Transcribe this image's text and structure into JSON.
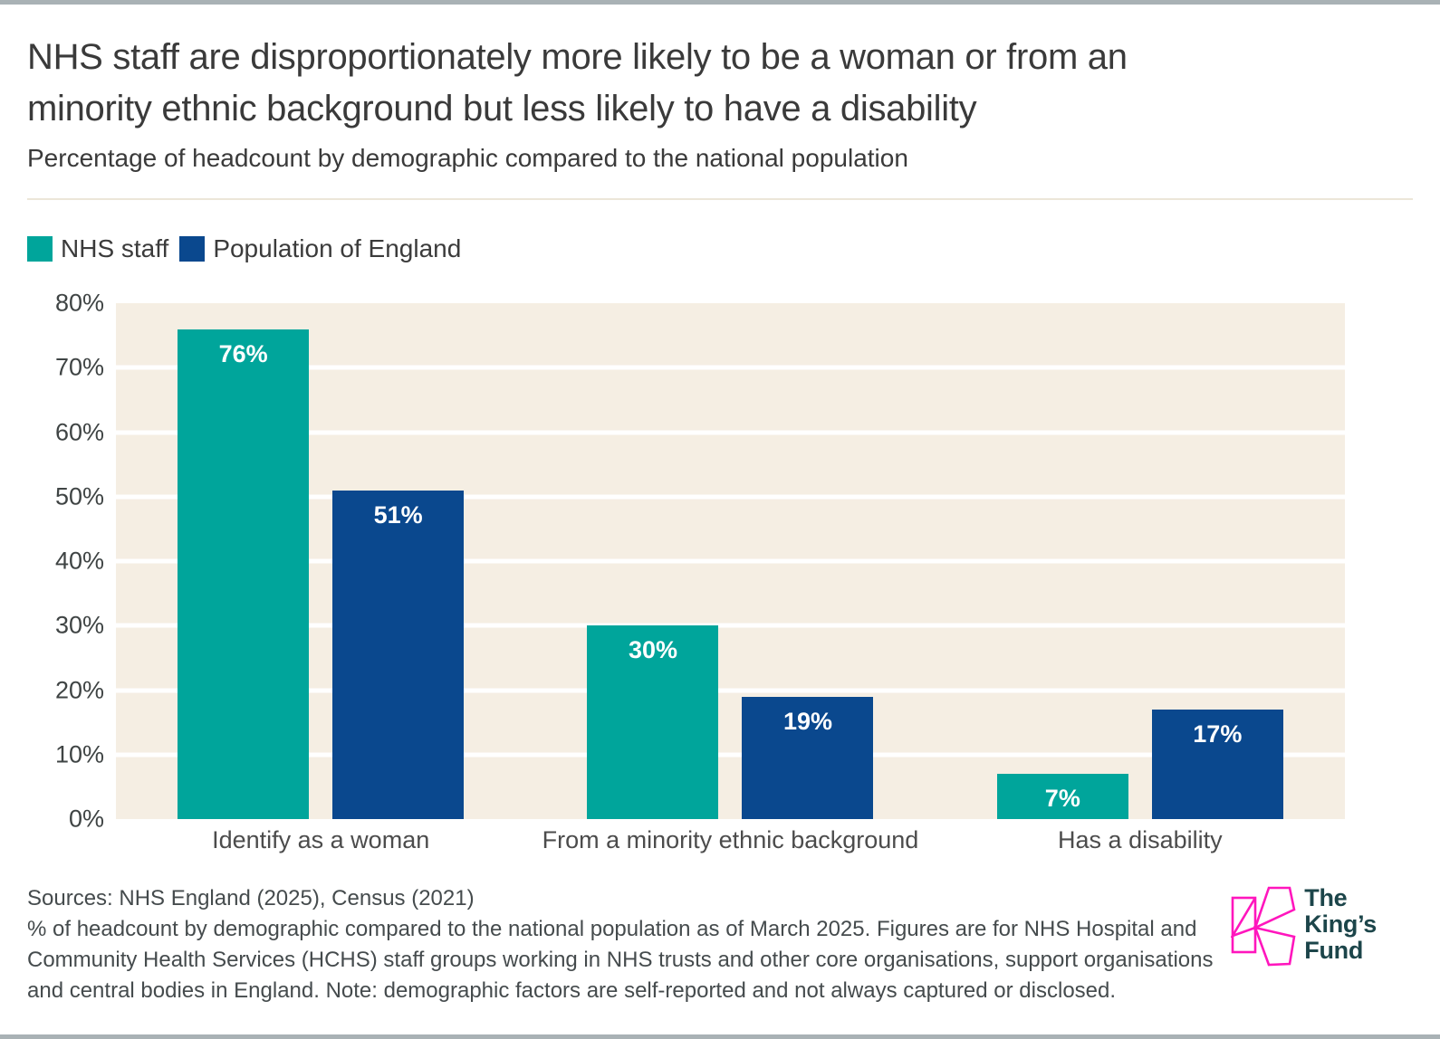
{
  "page": {
    "accent_strip_color": "#a9b2b5"
  },
  "header": {
    "title_line1": "NHS staff are disproportionately more likely to be a woman or from an",
    "title_line2": "minority ethnic background but less likely to have a disability",
    "subtitle": "Percentage of headcount by demographic compared to the national population"
  },
  "legend": [
    {
      "label": "NHS staff",
      "color": "#00a59b"
    },
    {
      "label": "Population of England",
      "color": "#0a488e"
    }
  ],
  "chart_data": {
    "type": "bar",
    "title": "NHS staff are disproportionately more likely to be a woman or from an minority ethnic background but less likely to have a disability",
    "subtitle": "Percentage of headcount by demographic compared to the national population",
    "categories": [
      "Identify as a woman",
      "From a minority ethnic background",
      "Has a disability"
    ],
    "series": [
      {
        "name": "NHS staff",
        "color": "#00a59b",
        "values": [
          76,
          30,
          7
        ]
      },
      {
        "name": "Population of England",
        "color": "#0a488e",
        "values": [
          51,
          19,
          17
        ]
      }
    ],
    "value_label_suffix": "%",
    "value_label_color": "#ffffff",
    "xlabel": "",
    "ylabel": "",
    "ylim": [
      0,
      80
    ],
    "ytick_step": 10,
    "ytick_labels": [
      "0%",
      "10%",
      "20%",
      "30%",
      "40%",
      "50%",
      "60%",
      "70%",
      "80%"
    ],
    "grid": "horizontal",
    "grid_color": "#ffffff",
    "plot_bg": "#f5eee3",
    "legend_position": "top-left"
  },
  "footer": {
    "sources": "Sources: NHS England (2025), Census (2021)",
    "note": "% of headcount by demographic compared to the national population as of March 2025. Figures are for NHS Hospital and Community Health Services (HCHS) staff groups working in NHS trusts and other core organisations, support organisations and central bodies in England. Note: demographic factors are self-reported and not always captured or disclosed."
  },
  "logo": {
    "lines": [
      "The",
      "King’s",
      "Fund"
    ],
    "mark_color": "#ff16bd",
    "text_color": "#1c454a"
  }
}
